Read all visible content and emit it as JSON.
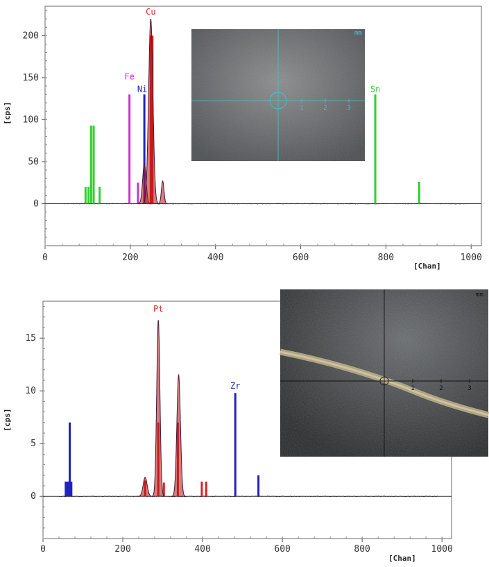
{
  "chart_data": [
    {
      "type": "line",
      "id": "top",
      "xlabel": "[Chan]",
      "ylabel": "[cps]",
      "xlim": [
        0,
        1024
      ],
      "ylim": [
        -50,
        235
      ],
      "xticks": [
        0,
        200,
        400,
        600,
        800,
        1000
      ],
      "yticks": [
        0,
        50,
        100,
        150,
        200
      ],
      "grid": false,
      "element_markers": [
        {
          "label": "Cu",
          "color": "#e02020",
          "positions": [
            248,
            252
          ],
          "heights": [
            200,
            200
          ],
          "label_x": 248,
          "label_y": 225
        },
        {
          "label": "Fe",
          "color": "#d030d0",
          "positions": [
            198,
            218
          ],
          "heights": [
            130,
            25
          ],
          "label_x": 198,
          "label_y": 148
        },
        {
          "label": "Ni",
          "color": "#2020c0",
          "positions": [
            233
          ],
          "heights": [
            130
          ],
          "label_x": 228,
          "label_y": 133
        },
        {
          "label": "Sn",
          "color": "#30d030",
          "positions": [
            775,
            878,
            95,
            102,
            108,
            114,
            128
          ],
          "heights": [
            130,
            26,
            20,
            20,
            93,
            93,
            20
          ],
          "label_x": 775,
          "label_y": 133
        }
      ],
      "spectrum_peaks": [
        {
          "center": 233,
          "height": 48,
          "width": 4
        },
        {
          "center": 248,
          "height": 220,
          "width": 5
        },
        {
          "center": 276,
          "height": 27,
          "width": 3
        }
      ],
      "micrograph": {
        "unit": "mm",
        "scale_labels": [
          "1",
          "2",
          "3"
        ]
      }
    },
    {
      "type": "line",
      "id": "bottom",
      "xlabel": "[Chan]",
      "ylabel": "[cps]",
      "xlim": [
        0,
        1024
      ],
      "ylim": [
        -4,
        18.5
      ],
      "xticks": [
        0,
        200,
        400,
        600,
        800,
        1000
      ],
      "yticks": [
        0,
        5,
        10,
        15
      ],
      "grid": false,
      "element_markers": [
        {
          "label": "Pt",
          "color": "#e02020",
          "positions": [
            256,
            289,
            303,
            338,
            398,
            409
          ],
          "heights": [
            1.5,
            7,
            1.3,
            7,
            1.4,
            1.4
          ],
          "label_x": 289,
          "label_y": 17.5
        },
        {
          "label": "Zr",
          "color": "#2020c0",
          "positions": [
            57,
            62,
            67,
            71,
            482,
            540
          ],
          "heights": [
            1.4,
            1.4,
            7,
            1.4,
            9.8,
            2
          ],
          "label_x": 482,
          "label_y": 10.2
        }
      ],
      "spectrum_peaks": [
        {
          "center": 256,
          "height": 1.8,
          "width": 5
        },
        {
          "center": 289,
          "height": 16.7,
          "width": 4
        },
        {
          "center": 340,
          "height": 11.5,
          "width": 4.5
        }
      ],
      "micrograph": {
        "unit": "mm",
        "scale_labels": [
          "1",
          "2",
          "3"
        ]
      }
    }
  ]
}
